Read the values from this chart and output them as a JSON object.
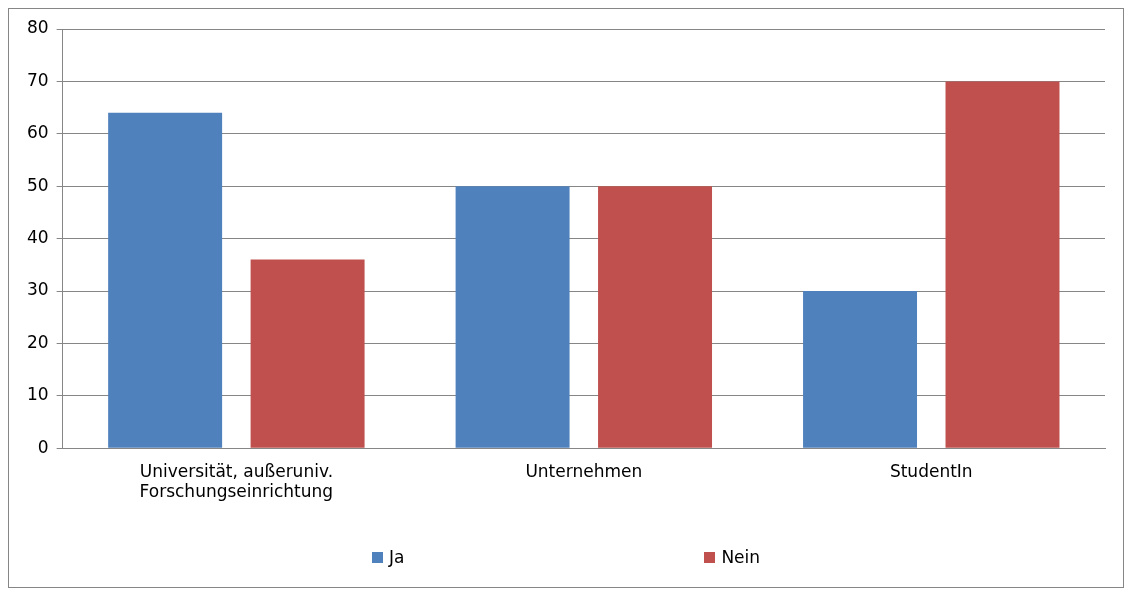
{
  "chart_data": {
    "type": "bar",
    "categories": [
      "Universität, außeruniv. Forschungseinrichtung",
      "Unternehmen",
      "StudentIn"
    ],
    "series": [
      {
        "name": "Ja",
        "color": "#4f81bd",
        "values": [
          64,
          50,
          30
        ]
      },
      {
        "name": "Nein",
        "color": "#c0504d",
        "values": [
          36,
          50,
          70
        ]
      }
    ],
    "ylim": [
      0,
      80
    ],
    "yticks": [
      0,
      10,
      20,
      30,
      40,
      50,
      60,
      70,
      80
    ],
    "grid": "y",
    "legend": "bottom"
  }
}
